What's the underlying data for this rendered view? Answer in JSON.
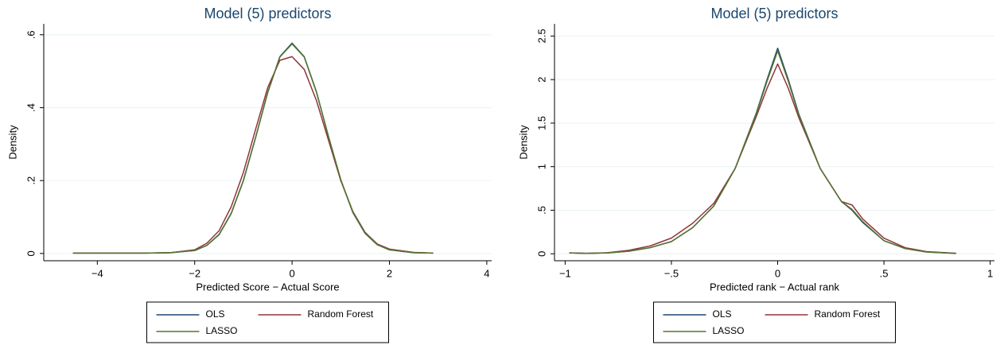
{
  "chart_data": [
    {
      "type": "line",
      "title": "Model (5) predictors",
      "xlabel": "Predicted Score − Actual Score",
      "ylabel": "Density",
      "x": [
        -4.5,
        -4,
        -3.5,
        -3,
        -2.5,
        -2,
        -1.75,
        -1.5,
        -1.25,
        -1,
        -0.75,
        -0.5,
        -0.25,
        0,
        0.25,
        0.5,
        0.75,
        1,
        1.25,
        1.5,
        1.75,
        2,
        2.5,
        2.9
      ],
      "series": [
        {
          "name": "OLS",
          "color": "#1a476f",
          "values": [
            0.001,
            0.001,
            0.001,
            0.001,
            0.002,
            0.008,
            0.022,
            0.052,
            0.11,
            0.2,
            0.318,
            0.442,
            0.54,
            0.577,
            0.54,
            0.444,
            0.32,
            0.202,
            0.112,
            0.055,
            0.024,
            0.01,
            0.002,
            0.001
          ]
        },
        {
          "name": "Random Forest",
          "color": "#90353b",
          "values": [
            0.001,
            0.001,
            0.001,
            0.001,
            0.002,
            0.01,
            0.028,
            0.062,
            0.128,
            0.222,
            0.34,
            0.455,
            0.53,
            0.54,
            0.505,
            0.42,
            0.31,
            0.2,
            0.115,
            0.058,
            0.026,
            0.012,
            0.003,
            0.001
          ]
        },
        {
          "name": "LASSO",
          "color": "#55752f",
          "values": [
            0.001,
            0.001,
            0.001,
            0.001,
            0.002,
            0.008,
            0.022,
            0.051,
            0.109,
            0.199,
            0.317,
            0.441,
            0.539,
            0.575,
            0.539,
            0.443,
            0.32,
            0.203,
            0.113,
            0.056,
            0.024,
            0.01,
            0.002,
            0.001
          ]
        }
      ],
      "xlim": [
        -5.1,
        4.1
      ],
      "ylim": [
        -0.02,
        0.63
      ],
      "xticks": [
        {
          "value": -4,
          "label": "−4"
        },
        {
          "value": -2,
          "label": "−2"
        },
        0,
        2,
        4
      ],
      "yticks": [
        0,
        {
          "value": 0.2,
          "label": ".2"
        },
        {
          "value": 0.4,
          "label": ".4"
        },
        {
          "value": 0.6,
          "label": ".6"
        }
      ],
      "grid": true,
      "legend": "bottom"
    },
    {
      "type": "line",
      "title": "Model (5) predictors",
      "xlabel": "Predicted rank − Actual rank",
      "ylabel": "Density",
      "x": [
        -0.98,
        -0.9,
        -0.8,
        -0.7,
        -0.6,
        -0.5,
        -0.4,
        -0.3,
        -0.2,
        -0.1,
        -0.05,
        0,
        0.05,
        0.1,
        0.2,
        0.3,
        0.35,
        0.4,
        0.5,
        0.6,
        0.7,
        0.84
      ],
      "series": [
        {
          "name": "OLS",
          "color": "#1a476f",
          "values": [
            0.01,
            0.005,
            0.01,
            0.03,
            0.07,
            0.14,
            0.3,
            0.55,
            0.98,
            1.62,
            2.0,
            2.36,
            2.0,
            1.6,
            0.98,
            0.6,
            0.5,
            0.36,
            0.15,
            0.06,
            0.02,
            0.005
          ]
        },
        {
          "name": "Random Forest",
          "color": "#90353b",
          "values": [
            0.01,
            0.006,
            0.012,
            0.04,
            0.09,
            0.18,
            0.35,
            0.58,
            0.98,
            1.58,
            1.9,
            2.18,
            1.9,
            1.56,
            0.98,
            0.6,
            0.56,
            0.4,
            0.18,
            0.07,
            0.025,
            0.006
          ]
        },
        {
          "name": "LASSO",
          "color": "#55752f",
          "values": [
            0.01,
            0.005,
            0.01,
            0.03,
            0.07,
            0.14,
            0.3,
            0.55,
            0.98,
            1.61,
            1.98,
            2.33,
            1.98,
            1.59,
            0.98,
            0.6,
            0.51,
            0.37,
            0.15,
            0.06,
            0.02,
            0.005
          ]
        }
      ],
      "xlim": [
        -1.05,
        1.02
      ],
      "ylim": [
        -0.08,
        2.64
      ],
      "xticks": [
        {
          "value": -1,
          "label": "−1"
        },
        {
          "value": -0.5,
          "label": "−.5"
        },
        0,
        {
          "value": 0.5,
          "label": ".5"
        },
        1
      ],
      "yticks": [
        0,
        {
          "value": 0.5,
          "label": ".5"
        },
        1,
        1.5,
        2,
        2.5
      ],
      "grid": true,
      "legend": "bottom"
    }
  ]
}
